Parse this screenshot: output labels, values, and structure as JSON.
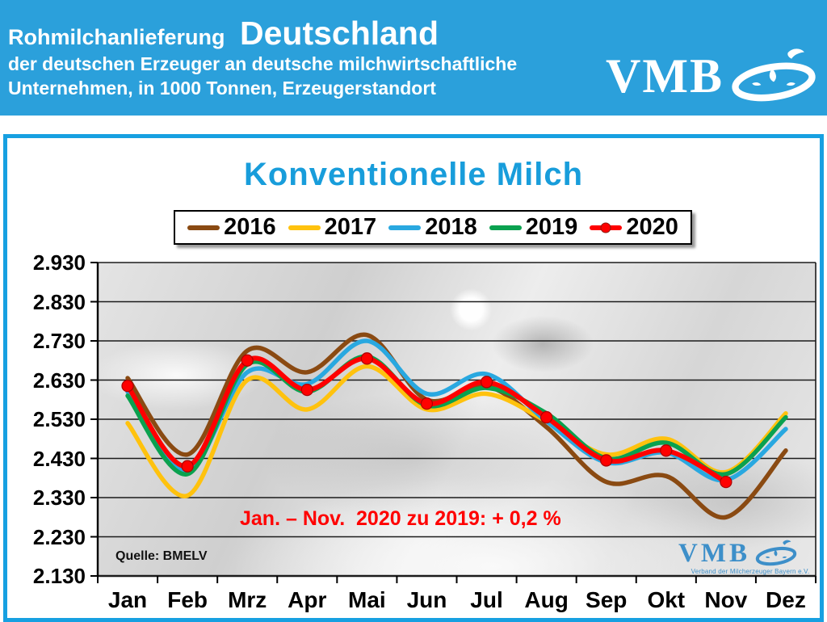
{
  "header": {
    "title_small": "Rohmilchanlieferung",
    "title_large": "Deutschland",
    "subtitle_line1": "der deutschen Erzeuger an deutsche milchwirtschaftliche",
    "subtitle_line2": "Unternehmen, in 1000 Tonnen, Erzeugerstandort",
    "logo_text": "VMB",
    "bg_color": "#2BA0DB"
  },
  "chart_data": {
    "type": "line",
    "title": "Konventionelle Milch",
    "title_color": "#189DDB",
    "unit": "1000 Tonnen",
    "categories": [
      "Jan",
      "Feb",
      "Mrz",
      "Apr",
      "Mai",
      "Jun",
      "Jul",
      "Aug",
      "Sep",
      "Okt",
      "Nov",
      "Dez"
    ],
    "series": [
      {
        "name": "2016",
        "color": "#8A4A12",
        "values": [
          2635,
          2440,
          2705,
          2650,
          2745,
          2580,
          2615,
          2510,
          2370,
          2385,
          2280,
          2450
        ]
      },
      {
        "name": "2017",
        "color": "#FFC20E",
        "values": [
          2520,
          2335,
          2630,
          2555,
          2665,
          2555,
          2595,
          2525,
          2440,
          2480,
          2395,
          2545
        ]
      },
      {
        "name": "2018",
        "color": "#29A8E0",
        "values": [
          2600,
          2400,
          2650,
          2620,
          2730,
          2595,
          2645,
          2525,
          2420,
          2445,
          2375,
          2505
        ]
      },
      {
        "name": "2019",
        "color": "#0AA14F",
        "values": [
          2590,
          2390,
          2670,
          2600,
          2690,
          2565,
          2610,
          2545,
          2430,
          2470,
          2390,
          2535
        ]
      },
      {
        "name": "2020",
        "color": "#FF0000",
        "marker": true,
        "values": [
          2615,
          2410,
          2680,
          2605,
          2685,
          2570,
          2625,
          2535,
          2425,
          2450,
          2370,
          null
        ]
      }
    ],
    "ylim": [
      2130,
      2930
    ],
    "ytick_step": 100,
    "ytick_labels": [
      "2.930",
      "2.830",
      "2.730",
      "2.630",
      "2.530",
      "2.430",
      "2.330",
      "2.230",
      "2.130"
    ],
    "grid": true,
    "legend_position": "top",
    "annotation": "Jan. – Nov.  2020 zu 2019: + 0,2 %",
    "annotation_color": "#FF0000",
    "source": "Quelle: BMELV",
    "watermark": "VMB",
    "watermark_sub": "Verband der Milcherzeuger Bayern e.V."
  }
}
